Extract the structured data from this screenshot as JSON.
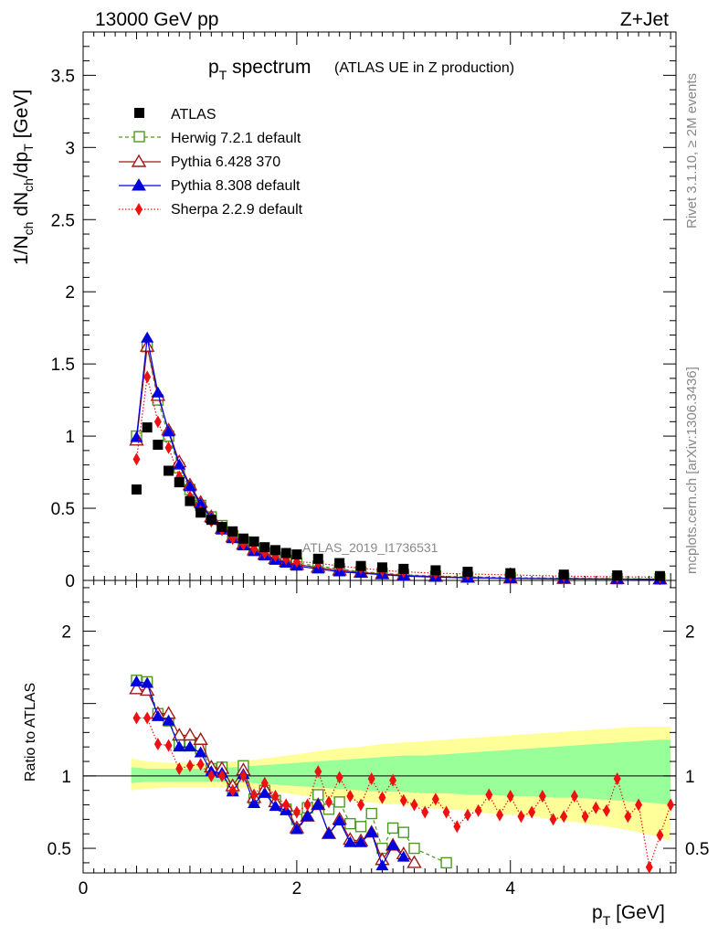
{
  "header": {
    "left": "13000 GeV pp",
    "right": "Z+Jet"
  },
  "side_labels": {
    "rivet": "Rivet 3.1.10, ≥ 2M events",
    "mcplots": "mcplots.cern.ch [arXiv:1306.3436]"
  },
  "title": {
    "main": "p",
    "sub": "T",
    "rest": " spectrum",
    "small": "(ATLAS UE in Z production)"
  },
  "watermark": "ATLAS_2019_I1736531",
  "axes": {
    "ylabel_main": {
      "a": "1/N",
      "b": "ch",
      "c": " dN",
      "d": "ch",
      "e": "/dp",
      "f": "T",
      "g": " [GeV]"
    },
    "ylabel_ratio": "Ratio to ATLAS",
    "xlabel": {
      "a": "p",
      "b": "T",
      "c": " [GeV]"
    }
  },
  "colors": {
    "atlas": "#000000",
    "herwig": "#4c9a22",
    "pythia6": "#a01818",
    "pythia8": "#0000dd",
    "sherpa": "#ee1111",
    "band_yellow": "#ffff99",
    "band_green": "#99ff99"
  },
  "chart_data": [
    {
      "type": "scatter",
      "title": "pT spectrum (ATLAS UE in Z production)",
      "xlabel": "pT [GeV]",
      "ylabel": "1/Nch dNch/dpT [GeV]",
      "xlim": [
        0,
        5.55
      ],
      "ylim": [
        0,
        3.8
      ],
      "x_ticks": [
        "0",
        "2",
        "4"
      ],
      "y_ticks": [
        "0",
        "0.5",
        "1",
        "1.5",
        "2",
        "2.5",
        "3",
        "3.5"
      ],
      "legend_position": "top-left",
      "series": [
        {
          "name": "ATLAS",
          "style": "filled-square",
          "x": [
            0.5,
            0.6,
            0.7,
            0.8,
            0.9,
            1.0,
            1.1,
            1.2,
            1.3,
            1.4,
            1.5,
            1.6,
            1.7,
            1.8,
            1.9,
            2.0,
            2.2,
            2.4,
            2.6,
            2.8,
            3.0,
            3.3,
            3.6,
            4.0,
            4.5,
            5.0,
            5.4
          ],
          "y": [
            0.63,
            1.06,
            0.94,
            0.76,
            0.68,
            0.55,
            0.47,
            0.42,
            0.37,
            0.34,
            0.29,
            0.27,
            0.23,
            0.21,
            0.19,
            0.18,
            0.15,
            0.12,
            0.1,
            0.09,
            0.08,
            0.07,
            0.06,
            0.05,
            0.04,
            0.035,
            0.03
          ]
        },
        {
          "name": "Herwig 7.2.1 default",
          "style": "open-square-dashed",
          "x": [
            0.5,
            0.6,
            0.7,
            0.8,
            0.9,
            1.0,
            1.1,
            1.2,
            1.3,
            1.4,
            1.5,
            1.6,
            1.7,
            1.8,
            1.9,
            2.0,
            2.2,
            2.4,
            2.6,
            2.8,
            3.0,
            3.3,
            3.6,
            4.0,
            4.5,
            5.0,
            5.4
          ],
          "y": [
            1.0,
            1.62,
            1.25,
            1.0,
            0.78,
            0.63,
            0.52,
            0.44,
            0.38,
            0.31,
            0.27,
            0.22,
            0.19,
            0.16,
            0.14,
            0.12,
            0.1,
            0.08,
            0.06,
            0.05,
            0.04,
            0.03,
            0.025,
            0.02,
            0.015,
            0.012,
            0.01
          ]
        },
        {
          "name": "Pythia 6.428 370",
          "style": "open-triangle-line",
          "x": [
            0.5,
            0.6,
            0.7,
            0.8,
            0.9,
            1.0,
            1.1,
            1.2,
            1.3,
            1.4,
            1.5,
            1.6,
            1.7,
            1.8,
            1.9,
            2.0,
            2.2,
            2.4,
            2.6,
            2.8,
            3.0,
            3.3,
            3.6,
            4.0,
            4.5,
            5.0,
            5.4
          ],
          "y": [
            0.97,
            1.62,
            1.28,
            1.04,
            0.82,
            0.66,
            0.54,
            0.44,
            0.36,
            0.3,
            0.25,
            0.21,
            0.18,
            0.15,
            0.13,
            0.11,
            0.09,
            0.07,
            0.055,
            0.045,
            0.035,
            0.027,
            0.02,
            0.015,
            0.012,
            0.01,
            0.008
          ]
        },
        {
          "name": "Pythia 8.308 default",
          "style": "filled-triangle-line",
          "x": [
            0.5,
            0.6,
            0.7,
            0.8,
            0.9,
            1.0,
            1.1,
            1.2,
            1.3,
            1.4,
            1.5,
            1.6,
            1.7,
            1.8,
            1.9,
            2.0,
            2.2,
            2.4,
            2.6,
            2.8,
            3.0,
            3.3,
            3.6,
            4.0,
            4.5,
            5.0,
            5.4
          ],
          "y": [
            0.99,
            1.68,
            1.3,
            1.03,
            0.8,
            0.65,
            0.53,
            0.43,
            0.35,
            0.29,
            0.24,
            0.2,
            0.17,
            0.14,
            0.12,
            0.1,
            0.08,
            0.06,
            0.05,
            0.04,
            0.03,
            0.023,
            0.018,
            0.014,
            0.011,
            0.009,
            0.007
          ]
        },
        {
          "name": "Sherpa 2.2.9 default",
          "style": "filled-diamond-dotted",
          "x": [
            0.5,
            0.6,
            0.7,
            0.8,
            0.9,
            1.0,
            1.1,
            1.2,
            1.3,
            1.4,
            1.5,
            1.6,
            1.7,
            1.8,
            1.9,
            2.0,
            2.2,
            2.4,
            2.6,
            2.8,
            3.0,
            3.3,
            3.6,
            4.0,
            4.5,
            5.0,
            5.4
          ],
          "y": [
            0.84,
            1.41,
            1.1,
            0.92,
            0.72,
            0.58,
            0.48,
            0.41,
            0.35,
            0.29,
            0.25,
            0.22,
            0.19,
            0.17,
            0.15,
            0.13,
            0.12,
            0.1,
            0.085,
            0.07,
            0.06,
            0.05,
            0.045,
            0.038,
            0.03,
            0.025,
            0.022
          ]
        }
      ]
    },
    {
      "type": "line",
      "ylabel": "Ratio to ATLAS",
      "xlim": [
        0,
        5.55
      ],
      "ylim": [
        0.33,
        2.35
      ],
      "x_ticks": [
        "0",
        "2",
        "4"
      ],
      "y_ticks": [
        "0.5",
        "1",
        "2"
      ],
      "bands": {
        "x": [
          0.45,
          0.6,
          0.8,
          1.0,
          1.2,
          1.4,
          1.6,
          1.8,
          2.0,
          2.2,
          2.4,
          2.6,
          2.8,
          3.0,
          3.2,
          3.4,
          3.6,
          3.8,
          4.0,
          4.2,
          4.4,
          4.6,
          4.8,
          5.0,
          5.2,
          5.4,
          5.5
        ],
        "yellow_hi": [
          1.12,
          1.1,
          1.09,
          1.09,
          1.09,
          1.1,
          1.11,
          1.13,
          1.15,
          1.17,
          1.19,
          1.2,
          1.22,
          1.23,
          1.24,
          1.25,
          1.26,
          1.27,
          1.28,
          1.29,
          1.3,
          1.31,
          1.32,
          1.33,
          1.34,
          1.34,
          1.34
        ],
        "yellow_lo": [
          0.9,
          0.91,
          0.92,
          0.92,
          0.92,
          0.92,
          0.91,
          0.89,
          0.87,
          0.85,
          0.84,
          0.82,
          0.81,
          0.8,
          0.78,
          0.77,
          0.76,
          0.74,
          0.73,
          0.72,
          0.7,
          0.68,
          0.66,
          0.64,
          0.61,
          0.58,
          0.55
        ],
        "green_hi": [
          1.06,
          1.05,
          1.05,
          1.05,
          1.05,
          1.06,
          1.07,
          1.08,
          1.09,
          1.1,
          1.11,
          1.12,
          1.13,
          1.14,
          1.14,
          1.15,
          1.16,
          1.17,
          1.18,
          1.19,
          1.2,
          1.21,
          1.22,
          1.23,
          1.24,
          1.25,
          1.25
        ],
        "green_lo": [
          0.95,
          0.96,
          0.96,
          0.96,
          0.96,
          0.96,
          0.95,
          0.94,
          0.93,
          0.92,
          0.91,
          0.9,
          0.89,
          0.89,
          0.88,
          0.88,
          0.87,
          0.87,
          0.86,
          0.86,
          0.85,
          0.85,
          0.84,
          0.83,
          0.82,
          0.81,
          0.8
        ]
      },
      "series": [
        {
          "name": "Herwig 7.2.1 default",
          "style": "open-square-dashed",
          "x": [
            0.5,
            0.6,
            0.7,
            0.8,
            0.9,
            1.0,
            1.1,
            1.2,
            1.3,
            1.4,
            1.5,
            1.6,
            1.7,
            1.8,
            1.9,
            2.0,
            2.1,
            2.2,
            2.3,
            2.4,
            2.5,
            2.6,
            2.7,
            2.8,
            2.9,
            3.0,
            3.1,
            3.4
          ],
          "y": [
            1.66,
            1.65,
            1.43,
            1.38,
            1.22,
            1.22,
            1.19,
            1.05,
            1.06,
            0.91,
            1.07,
            0.84,
            0.9,
            0.83,
            0.77,
            0.7,
            0.78,
            0.87,
            0.77,
            0.82,
            0.67,
            0.65,
            0.74,
            0.5,
            0.64,
            0.61,
            0.5,
            0.4
          ]
        },
        {
          "name": "Pythia 6.428 370",
          "style": "open-triangle-line",
          "x": [
            0.5,
            0.6,
            0.7,
            0.8,
            0.9,
            1.0,
            1.1,
            1.2,
            1.3,
            1.4,
            1.5,
            1.6,
            1.7,
            1.8,
            1.9,
            2.0,
            2.1,
            2.2,
            2.3,
            2.4,
            2.5,
            2.6,
            2.7,
            2.8,
            2.9,
            3.0,
            3.1
          ],
          "y": [
            1.6,
            1.59,
            1.43,
            1.43,
            1.28,
            1.28,
            1.25,
            1.06,
            1.05,
            0.93,
            1.04,
            0.85,
            0.91,
            0.82,
            0.79,
            0.64,
            0.72,
            0.8,
            0.6,
            0.7,
            0.56,
            0.55,
            0.61,
            0.42,
            0.52,
            0.46,
            0.4
          ]
        },
        {
          "name": "Pythia 8.308 default",
          "style": "filled-triangle-line",
          "x": [
            0.5,
            0.6,
            0.7,
            0.8,
            0.9,
            1.0,
            1.1,
            1.2,
            1.3,
            1.4,
            1.5,
            1.6,
            1.7,
            1.8,
            1.9,
            2.0,
            2.1,
            2.2,
            2.3,
            2.4,
            2.5,
            2.6,
            2.7,
            2.8,
            2.9,
            3.0
          ],
          "y": [
            1.65,
            1.64,
            1.41,
            1.38,
            1.2,
            1.2,
            1.16,
            1.03,
            1.02,
            0.89,
            1.01,
            0.81,
            0.88,
            0.79,
            0.76,
            0.63,
            0.72,
            0.8,
            0.6,
            0.69,
            0.54,
            0.54,
            0.61,
            0.38,
            0.52,
            0.44
          ]
        },
        {
          "name": "Sherpa 2.2.9 default",
          "style": "filled-diamond-dotted",
          "x": [
            0.5,
            0.6,
            0.7,
            0.8,
            0.9,
            1.0,
            1.1,
            1.2,
            1.3,
            1.4,
            1.5,
            1.6,
            1.7,
            1.8,
            1.9,
            2.0,
            2.1,
            2.2,
            2.3,
            2.4,
            2.5,
            2.6,
            2.7,
            2.8,
            2.9,
            3.0,
            3.1,
            3.2,
            3.3,
            3.4,
            3.5,
            3.6,
            3.7,
            3.8,
            3.9,
            4.0,
            4.1,
            4.2,
            4.3,
            4.4,
            4.5,
            4.6,
            4.7,
            4.8,
            4.9,
            5.0,
            5.1,
            5.2,
            5.3,
            5.4,
            5.5
          ],
          "y": [
            1.4,
            1.4,
            1.22,
            1.21,
            1.05,
            1.07,
            1.08,
            1.0,
            1.0,
            0.9,
            1.0,
            0.87,
            0.95,
            0.86,
            0.8,
            0.75,
            0.8,
            1.03,
            0.82,
            0.99,
            0.86,
            0.8,
            0.98,
            0.85,
            0.97,
            0.83,
            0.8,
            0.75,
            0.84,
            0.75,
            0.65,
            0.73,
            0.76,
            0.87,
            0.73,
            0.86,
            0.72,
            0.75,
            0.86,
            0.7,
            0.72,
            0.86,
            0.72,
            0.78,
            0.76,
            0.98,
            0.72,
            0.8,
            0.37,
            0.59,
            0.8
          ]
        }
      ]
    }
  ]
}
